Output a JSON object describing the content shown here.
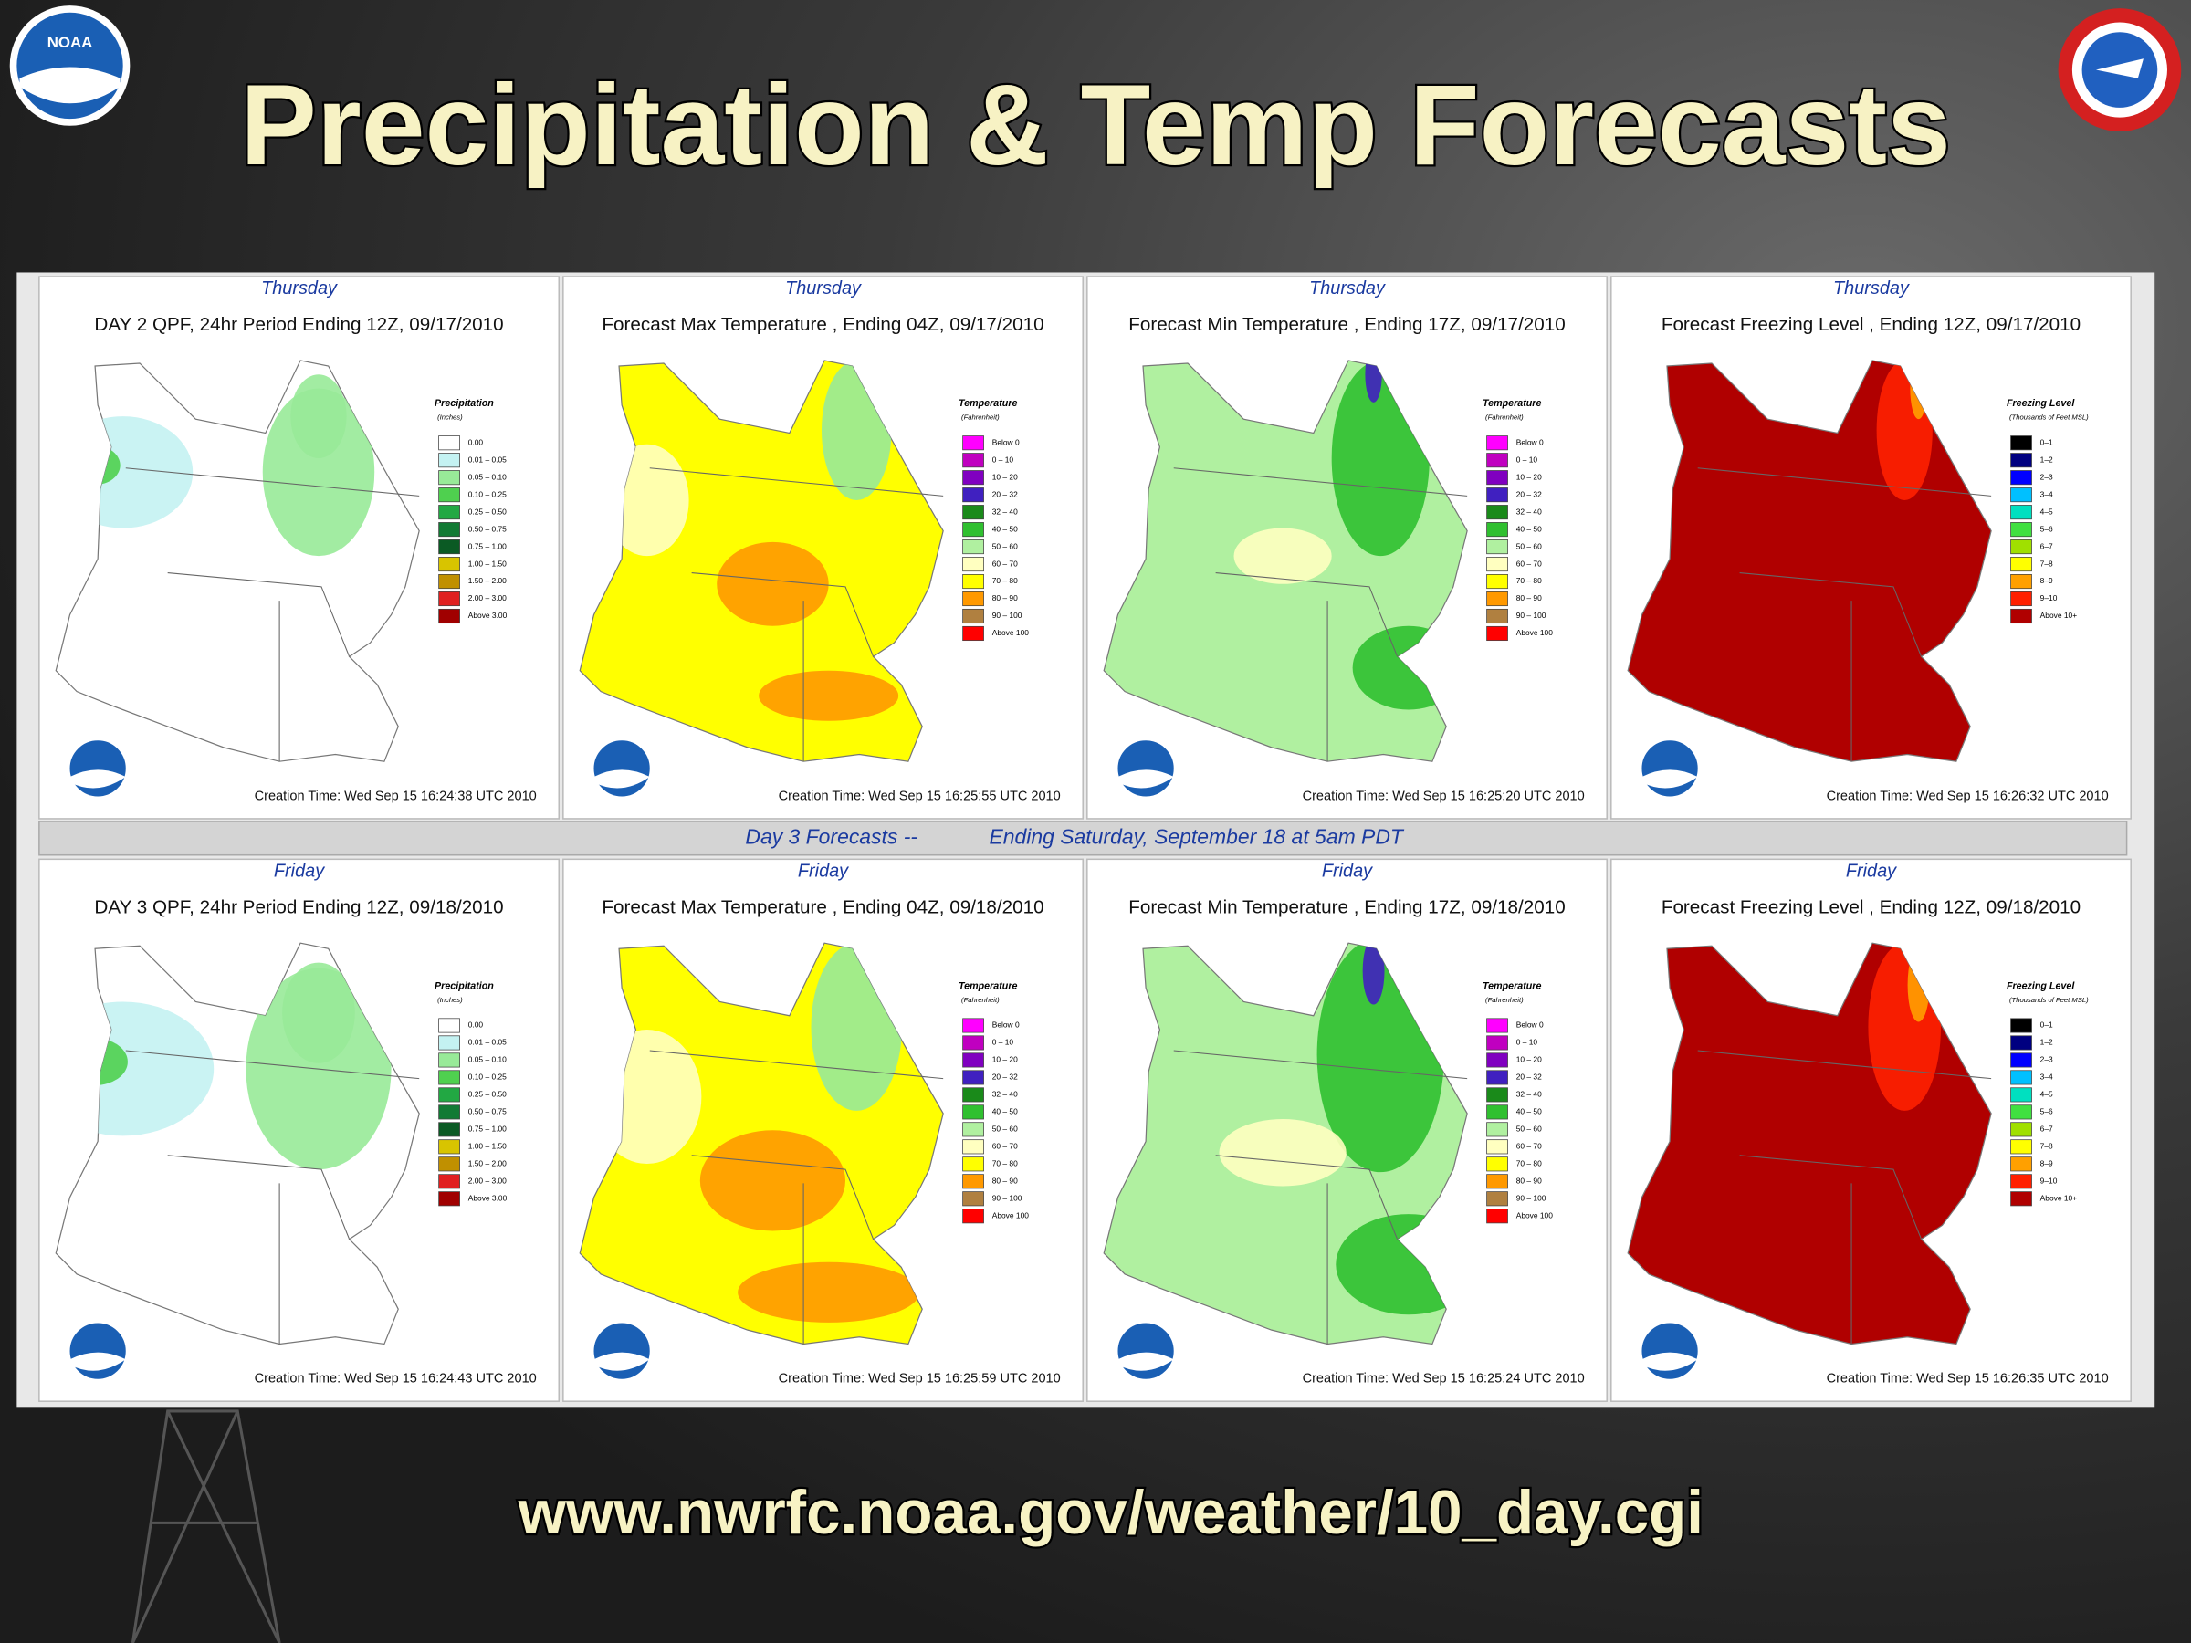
{
  "header": {
    "title": "Precipitation & Temp Forecasts"
  },
  "footer": {
    "url": "www.nwrfc.noaa.gov/weather/10_day.cgi"
  },
  "banner": [
    "Day 3 Forecasts --",
    "Ending Saturday, September 18 at 5am PDT"
  ],
  "columns": [
    {
      "legend": {
        "title": "Precipitation",
        "unit": "(Inches)",
        "items": [
          {
            "label": "0.00",
            "color": "#ffffff"
          },
          {
            "label": "0.01 – 0.05",
            "color": "#c4f2f2"
          },
          {
            "label": "0.05 – 0.10",
            "color": "#98ea98"
          },
          {
            "label": "0.10 – 0.25",
            "color": "#4fd04f"
          },
          {
            "label": "0.25 – 0.50",
            "color": "#22a843"
          },
          {
            "label": "0.50 – 0.75",
            "color": "#127a34"
          },
          {
            "label": "0.75 – 1.00",
            "color": "#0b5a24"
          },
          {
            "label": "1.00 – 1.50",
            "color": "#d8c400"
          },
          {
            "label": "1.50 – 2.00",
            "color": "#c09000"
          },
          {
            "label": "2.00 – 3.00",
            "color": "#e02020"
          },
          {
            "label": "Above 3.00",
            "color": "#a00000"
          }
        ]
      }
    },
    {
      "legend": {
        "title": "Temperature",
        "unit": "(Fahrenheit)",
        "items": [
          {
            "label": "Below 0",
            "color": "#ff00ff"
          },
          {
            "label": "0 – 10",
            "color": "#c000c0"
          },
          {
            "label": "10 – 20",
            "color": "#8000c0"
          },
          {
            "label": "20 – 32",
            "color": "#4020c0"
          },
          {
            "label": "32 – 40",
            "color": "#1a8a1a"
          },
          {
            "label": "40 – 50",
            "color": "#30c030"
          },
          {
            "label": "50 – 60",
            "color": "#b0f0a0"
          },
          {
            "label": "60 – 70",
            "color": "#ffffc0"
          },
          {
            "label": "70 – 80",
            "color": "#ffff00"
          },
          {
            "label": "80 – 90",
            "color": "#ff9900"
          },
          {
            "label": "90 – 100",
            "color": "#b08040"
          },
          {
            "label": "Above 100",
            "color": "#ff0000"
          }
        ]
      }
    },
    {
      "legend": {
        "title": "Temperature",
        "unit": "(Fahrenheit)",
        "items": [
          {
            "label": "Below 0",
            "color": "#ff00ff"
          },
          {
            "label": "0 – 10",
            "color": "#c000c0"
          },
          {
            "label": "10 – 20",
            "color": "#8000c0"
          },
          {
            "label": "20 – 32",
            "color": "#4020c0"
          },
          {
            "label": "32 – 40",
            "color": "#1a8a1a"
          },
          {
            "label": "40 – 50",
            "color": "#30c030"
          },
          {
            "label": "50 – 60",
            "color": "#b0f0a0"
          },
          {
            "label": "60 – 70",
            "color": "#ffffc0"
          },
          {
            "label": "70 – 80",
            "color": "#ffff00"
          },
          {
            "label": "80 – 90",
            "color": "#ff9900"
          },
          {
            "label": "90 – 100",
            "color": "#b08040"
          },
          {
            "label": "Above 100",
            "color": "#ff0000"
          }
        ]
      }
    },
    {
      "legend": {
        "title": "Freezing Level",
        "unit": "(Thousands of Feet MSL)",
        "items": [
          {
            "label": "0–1",
            "color": "#000000"
          },
          {
            "label": "1–2",
            "color": "#000080"
          },
          {
            "label": "2–3",
            "color": "#0000ff"
          },
          {
            "label": "3–4",
            "color": "#00c0ff"
          },
          {
            "label": "4–5",
            "color": "#00e0c0"
          },
          {
            "label": "5–6",
            "color": "#40e040"
          },
          {
            "label": "6–7",
            "color": "#a0e000"
          },
          {
            "label": "7–8",
            "color": "#ffff00"
          },
          {
            "label": "8–9",
            "color": "#ffa000"
          },
          {
            "label": "9–10",
            "color": "#ff2000"
          },
          {
            "label": "Above 10+",
            "color": "#b00000"
          }
        ]
      }
    }
  ],
  "rows": [
    {
      "day": "Thursday",
      "panels": [
        {
          "title": "DAY 2 QPF, 24hr Period Ending 12Z, 09/17/2010",
          "created": "Creation Time: Wed Sep 15 16:24:38 UTC 2010"
        },
        {
          "title": "Forecast Max Temperature , Ending 04Z, 09/17/2010",
          "created": "Creation Time: Wed Sep 15 16:25:55 UTC 2010"
        },
        {
          "title": "Forecast Min Temperature , Ending 17Z, 09/17/2010",
          "created": "Creation Time: Wed Sep 15 16:25:20 UTC 2010"
        },
        {
          "title": "Forecast Freezing Level , Ending 12Z, 09/17/2010",
          "created": "Creation Time: Wed Sep 15 16:26:32 UTC 2010"
        }
      ]
    },
    {
      "day": "Friday",
      "panels": [
        {
          "title": "DAY 3 QPF, 24hr Period Ending 12Z, 09/18/2010",
          "created": "Creation Time: Wed Sep 15 16:24:43 UTC 2010"
        },
        {
          "title": "Forecast Max Temperature , Ending 04Z, 09/18/2010",
          "created": "Creation Time: Wed Sep 15 16:25:59 UTC 2010"
        },
        {
          "title": "Forecast Min Temperature , Ending 17Z, 09/18/2010",
          "created": "Creation Time: Wed Sep 15 16:25:24 UTC 2010"
        },
        {
          "title": "Forecast Freezing Level , Ending 12Z, 09/18/2010",
          "created": "Creation Time: Wed Sep 15 16:26:35 UTC 2010"
        }
      ]
    }
  ]
}
